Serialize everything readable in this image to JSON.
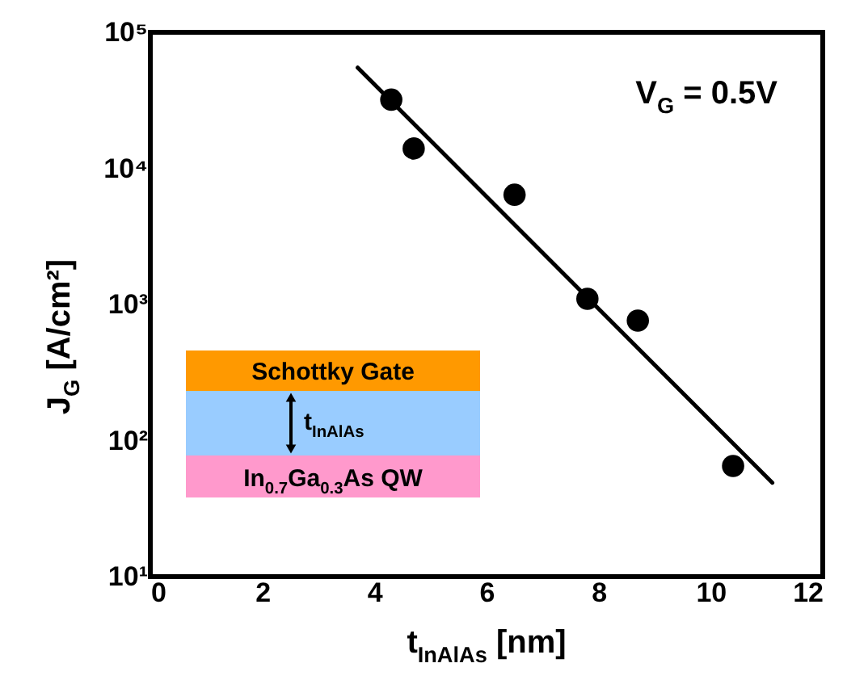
{
  "chart_data": {
    "type": "scatter",
    "xlabel": "t$_{InAlAs}$ [nm]",
    "ylabel": "J$_{G}$ [A/cm²]",
    "series": [
      {
        "color": "#000000",
        "marker": "circle",
        "x": [
          4.3,
          4.7,
          6.5,
          7.8,
          8.7,
          10.4
        ],
        "values": [
          32000,
          14000,
          6400,
          1100,
          760,
          65
        ]
      },
      {
        "type": "line",
        "color": "#000000",
        "marker": "none",
        "line_style": "solid",
        "x": [
          3.7,
          11.1
        ],
        "values": [
          55000,
          49
        ]
      }
    ],
    "log": "y",
    "xlim": [
      0,
      12
    ],
    "xticks": [
      0,
      2,
      4,
      6,
      8,
      10,
      12
    ],
    "ylim": [
      10,
      100000
    ],
    "yticks": [
      {
        "value": 10,
        "label": "10¹"
      },
      {
        "value": 100,
        "label": "10²"
      },
      {
        "value": 1000,
        "label": "10³"
      },
      {
        "value": 10000,
        "label": "10⁴"
      },
      {
        "value": 100000,
        "label": "10⁵"
      }
    ],
    "grid": false,
    "annotations": [
      "V$_{G}$ = 0.5V",
      "Schottky Gate",
      "t$_{InAlAs}$",
      "In$_{0.7}$Ga$_{0.3}$As QW"
    ]
  }
}
